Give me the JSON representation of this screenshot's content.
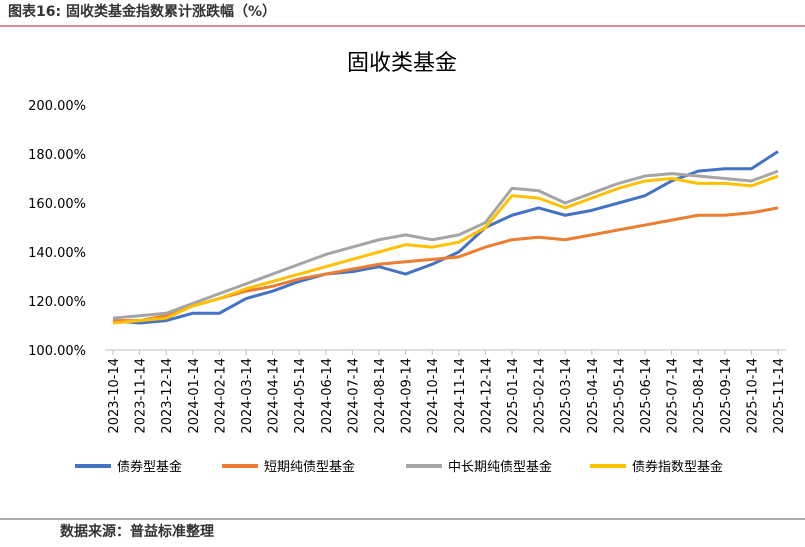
{
  "header": "图表16:  固收类基金指数累计涨跌幅（%）",
  "source": "数据来源：普益标准整理",
  "chart_data": {
    "type": "line",
    "title": "固收类基金",
    "categories": [
      "2023-10-14",
      "2023-11-14",
      "2023-12-14",
      "2024-01-14",
      "2024-02-14",
      "2024-03-14",
      "2024-04-14",
      "2024-05-14",
      "2024-06-14",
      "2024-07-14",
      "2024-08-14",
      "2024-09-14",
      "2024-10-14",
      "2024-11-14",
      "2024-12-14",
      "2025-01-14",
      "2025-02-14",
      "2025-03-14",
      "2025-04-14",
      "2025-05-14",
      "2025-06-14",
      "2025-07-14",
      "2025-08-14",
      "2025-09-14",
      "2025-10-14",
      "2025-11-14"
    ],
    "series": [
      {
        "name": "债券型基金",
        "color": "#4472c4",
        "values": [
          112,
          111,
          112,
          115,
          115,
          121,
          124,
          128,
          131,
          132,
          134,
          131,
          135,
          140,
          150,
          155,
          158,
          155,
          157,
          160,
          163,
          169,
          173,
          174,
          174,
          181
        ]
      },
      {
        "name": "短期纯债型基金",
        "color": "#ed7d31",
        "values": [
          112,
          112,
          114,
          118,
          121,
          124,
          126,
          129,
          131,
          133,
          135,
          136,
          137,
          138,
          142,
          145,
          146,
          145,
          147,
          149,
          151,
          153,
          155,
          155,
          156,
          158
        ]
      },
      {
        "name": "中长期纯债型基金",
        "color": "#a5a5a5",
        "values": [
          113,
          114,
          115,
          119,
          123,
          127,
          131,
          135,
          139,
          142,
          145,
          147,
          145,
          147,
          152,
          166,
          165,
          160,
          164,
          168,
          171,
          172,
          171,
          170,
          169,
          173
        ]
      },
      {
        "name": "债券指数型基金",
        "color": "#ffc000",
        "values": [
          111,
          112,
          113,
          118,
          121,
          125,
          128,
          131,
          134,
          137,
          140,
          143,
          142,
          144,
          150,
          163,
          162,
          158,
          162,
          166,
          169,
          170,
          168,
          168,
          167,
          171
        ]
      }
    ],
    "ylim": [
      100,
      200
    ],
    "yticks": [
      {
        "value": 100,
        "label": "100.00%"
      },
      {
        "value": 120,
        "label": "120.00%"
      },
      {
        "value": 140,
        "label": "140.00%"
      },
      {
        "value": 160,
        "label": "160.00%"
      },
      {
        "value": 180,
        "label": "180.00%"
      },
      {
        "value": 200,
        "label": "200.00%"
      }
    ],
    "legend": "bottom"
  }
}
